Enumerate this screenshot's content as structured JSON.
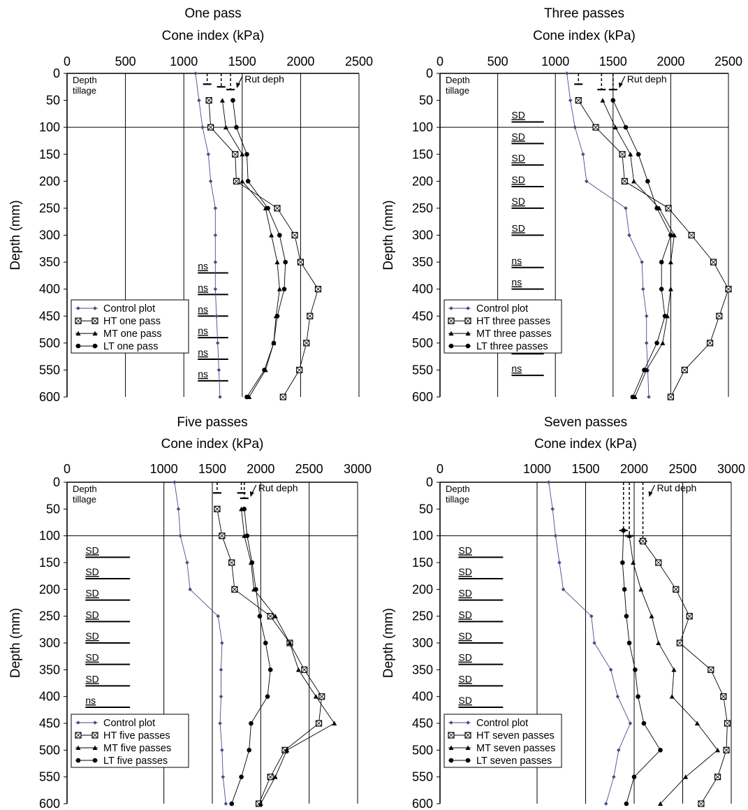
{
  "chart_data": [
    {
      "type": "line",
      "title": "One pass",
      "xlabel": "Cone index (kPa)",
      "ylabel": "Depth (mm)",
      "xlim": [
        0,
        2500
      ],
      "ylim": [
        0,
        600
      ],
      "xticks": [
        0,
        500,
        1000,
        1500,
        2000,
        2500
      ],
      "yticks": [
        0,
        50,
        100,
        150,
        200,
        250,
        300,
        350,
        400,
        450,
        500,
        550,
        600
      ],
      "y_reversed": true,
      "grid": "vertical gridlines at each x tick; horizontal line at depth 100",
      "legend_position": "bottom-left",
      "depth_tillage_label": "Depth tillage",
      "rut_depth_label": "Rut deph",
      "rut_marks": [
        {
          "series": "HT one pass",
          "x": 1200,
          "depth": 20
        },
        {
          "series": "MT one pass",
          "x": 1320,
          "depth": 25
        },
        {
          "series": "LT one pass",
          "x": 1400,
          "depth": 30
        }
      ],
      "annotations": [
        {
          "text": "ns",
          "depth": 370
        },
        {
          "text": "ns",
          "depth": 410
        },
        {
          "text": "ns",
          "depth": 450
        },
        {
          "text": "ns",
          "depth": 490
        },
        {
          "text": "ns",
          "depth": 530
        },
        {
          "text": "ns",
          "depth": 570
        }
      ],
      "annotation_x": [
        1120,
        1380
      ],
      "series": [
        {
          "name": "Control plot",
          "marker": "diamond",
          "depth": [
            0,
            50,
            100,
            150,
            200,
            250,
            300,
            350,
            400,
            450,
            500,
            550,
            600
          ],
          "values": [
            1100,
            1130,
            1160,
            1210,
            1230,
            1270,
            1270,
            1270,
            1270,
            1280,
            1290,
            1300,
            1310
          ]
        },
        {
          "name": "HT one pass",
          "marker": "square",
          "depth": [
            50,
            100,
            150,
            200,
            250,
            300,
            350,
            400,
            450,
            500,
            550,
            600
          ],
          "values": [
            1215,
            1230,
            1440,
            1450,
            1800,
            1950,
            2000,
            2150,
            2080,
            2050,
            1990,
            1850
          ]
        },
        {
          "name": "MT one pass",
          "marker": "triangle",
          "depth": [
            50,
            100,
            150,
            200,
            250,
            300,
            350,
            400,
            450,
            500,
            550,
            600
          ],
          "values": [
            1330,
            1360,
            1500,
            1500,
            1700,
            1750,
            1800,
            1820,
            1790,
            1770,
            1700,
            1560
          ]
        },
        {
          "name": "LT one pass",
          "marker": "circle",
          "depth": [
            50,
            100,
            150,
            200,
            250,
            300,
            350,
            400,
            450,
            500,
            550,
            600
          ],
          "values": [
            1420,
            1450,
            1540,
            1550,
            1720,
            1820,
            1870,
            1860,
            1800,
            1770,
            1690,
            1540
          ]
        }
      ],
      "legend": [
        "Control plot",
        "HT one pass",
        "MT one pass",
        "LT one pass"
      ]
    },
    {
      "type": "line",
      "title": "Three passes",
      "xlabel": "Cone index (kPa)",
      "ylabel": "Depth (mm)",
      "xlim": [
        0,
        2500
      ],
      "ylim": [
        0,
        600
      ],
      "xticks": [
        0,
        500,
        1000,
        1500,
        2000,
        2500
      ],
      "yticks": [
        0,
        50,
        100,
        150,
        200,
        250,
        300,
        350,
        400,
        450,
        500,
        550,
        600
      ],
      "y_reversed": true,
      "grid": "vertical gridlines at each x tick; horizontal line at depth 100",
      "legend_position": "bottom-left",
      "depth_tillage_label": "Depth tillage",
      "rut_depth_label": "Rut deph",
      "rut_marks": [
        {
          "series": "HT three passes",
          "x": 1200,
          "depth": 20
        },
        {
          "series": "MT three passes",
          "x": 1400,
          "depth": 30
        },
        {
          "series": "LT three passes",
          "x": 1500,
          "depth": 30
        }
      ],
      "annotations": [
        {
          "text": "SD",
          "depth": 90
        },
        {
          "text": "SD",
          "depth": 130
        },
        {
          "text": "SD",
          "depth": 170
        },
        {
          "text": "SD",
          "depth": 210
        },
        {
          "text": "SD",
          "depth": 250
        },
        {
          "text": "SD",
          "depth": 300
        },
        {
          "text": "ns",
          "depth": 360
        },
        {
          "text": "ns",
          "depth": 400
        },
        {
          "text": "ns",
          "depth": 440
        },
        {
          "text": "ns",
          "depth": 480
        },
        {
          "text": "ns",
          "depth": 520
        },
        {
          "text": "ns",
          "depth": 560
        }
      ],
      "annotation_x": [
        620,
        900
      ],
      "series": [
        {
          "name": "Control plot",
          "marker": "diamond",
          "depth": [
            0,
            50,
            100,
            150,
            200,
            250,
            300,
            350,
            400,
            450,
            500,
            550,
            600
          ],
          "values": [
            1100,
            1130,
            1170,
            1240,
            1270,
            1610,
            1640,
            1750,
            1760,
            1790,
            1790,
            1800,
            1810
          ]
        },
        {
          "name": "HT three passes",
          "marker": "square",
          "depth": [
            50,
            100,
            150,
            200,
            250,
            300,
            350,
            400,
            450,
            500,
            550,
            600
          ],
          "values": [
            1200,
            1350,
            1580,
            1600,
            1980,
            2180,
            2370,
            2500,
            2420,
            2340,
            2120,
            2000
          ]
        },
        {
          "name": "MT three passes",
          "marker": "triangle",
          "depth": [
            50,
            100,
            150,
            200,
            250,
            300,
            350,
            400,
            450,
            500,
            550,
            600
          ],
          "values": [
            1410,
            1520,
            1650,
            1680,
            1900,
            2030,
            2000,
            2000,
            1970,
            1930,
            1790,
            1690
          ]
        },
        {
          "name": "LT three passes",
          "marker": "circle",
          "depth": [
            50,
            100,
            150,
            200,
            250,
            300,
            350,
            400,
            450,
            500,
            550,
            600
          ],
          "values": [
            1500,
            1610,
            1720,
            1800,
            1880,
            2000,
            1920,
            1920,
            1950,
            1880,
            1770,
            1670
          ]
        }
      ],
      "legend": [
        "Control plot",
        "HT three passes",
        "MT three passes",
        "LT three passes"
      ]
    },
    {
      "type": "line",
      "title": "Five passes",
      "xlabel": "Cone index (kPa)",
      "ylabel": "Depth (mm)",
      "xlim": [
        0,
        3000
      ],
      "ylim": [
        0,
        600
      ],
      "xticks": [
        0,
        1000,
        1500,
        2000,
        2500,
        3000
      ],
      "yticks": [
        0,
        50,
        100,
        150,
        200,
        250,
        300,
        350,
        400,
        450,
        500,
        550,
        600
      ],
      "y_reversed": true,
      "grid": "vertical gridlines at each x tick; horizontal line at depth 100",
      "legend_position": "bottom-left",
      "depth_tillage_label": "Depth tillage",
      "rut_depth_label": "Rut deph",
      "rut_marks": [
        {
          "series": "HT five passes",
          "x": 1550,
          "depth": 20
        },
        {
          "series": "MT five passes",
          "x": 1800,
          "depth": 20
        },
        {
          "series": "LT five passes",
          "x": 1830,
          "depth": 30
        }
      ],
      "annotations": [
        {
          "text": "SD",
          "depth": 140
        },
        {
          "text": "SD",
          "depth": 180
        },
        {
          "text": "SD",
          "depth": 220
        },
        {
          "text": "SD",
          "depth": 260
        },
        {
          "text": "SD",
          "depth": 300
        },
        {
          "text": "SD",
          "depth": 340
        },
        {
          "text": "SD",
          "depth": 380
        },
        {
          "text": "ns",
          "depth": 420
        },
        {
          "text": "ns",
          "depth": 460
        },
        {
          "text": "ns",
          "depth": 500
        }
      ],
      "annotation_x": [
        190,
        650
      ],
      "series": [
        {
          "name": "Control plot",
          "marker": "diamond",
          "depth": [
            0,
            50,
            100,
            150,
            200,
            250,
            300,
            350,
            400,
            450,
            500,
            550,
            600
          ],
          "values": [
            1110,
            1150,
            1170,
            1240,
            1270,
            1560,
            1600,
            1590,
            1590,
            1580,
            1600,
            1610,
            1640
          ]
        },
        {
          "name": "HT five passes",
          "marker": "square",
          "depth": [
            50,
            100,
            150,
            200,
            250,
            300,
            350,
            400,
            450,
            500,
            550,
            600
          ],
          "values": [
            1550,
            1600,
            1700,
            1730,
            2100,
            2300,
            2450,
            2630,
            2600,
            2250,
            2100,
            1980
          ]
        },
        {
          "name": "MT five passes",
          "marker": "triangle",
          "depth": [
            50,
            100,
            150,
            200,
            250,
            300,
            350,
            400,
            450,
            500,
            550,
            600
          ],
          "values": [
            1800,
            1830,
            1900,
            1930,
            2150,
            2300,
            2390,
            2570,
            2760,
            2270,
            2150,
            2000
          ]
        },
        {
          "name": "LT five passes",
          "marker": "circle",
          "depth": [
            50,
            100,
            150,
            200,
            250,
            300,
            350,
            400,
            450,
            500,
            550,
            600
          ],
          "values": [
            1830,
            1860,
            1910,
            1950,
            1990,
            2050,
            2100,
            2070,
            1900,
            1880,
            1800,
            1700
          ]
        }
      ],
      "legend": [
        "Control plot",
        "HT five passes",
        "MT five passes",
        "LT five passes"
      ]
    },
    {
      "type": "line",
      "title": "Seven passes",
      "xlabel": "Cone index (kPa)",
      "ylabel": "Depth (mm)",
      "xlim": [
        0,
        3000
      ],
      "ylim": [
        0,
        600
      ],
      "xticks": [
        0,
        1000,
        1500,
        2000,
        2500,
        3000
      ],
      "yticks": [
        0,
        50,
        100,
        150,
        200,
        250,
        300,
        350,
        400,
        450,
        500,
        550,
        600
      ],
      "y_reversed": true,
      "grid": "vertical gridlines at each x tick; horizontal line at depth 100",
      "legend_position": "bottom-left",
      "depth_tillage_label": "Depth tillage",
      "rut_depth_label": "Rut deph",
      "rut_marks": [
        {
          "series": "HT seven passes",
          "x": 2090,
          "depth": 110
        },
        {
          "series": "MT seven passes",
          "x": 1950,
          "depth": 100
        },
        {
          "series": "LT seven passes",
          "x": 1890,
          "depth": 90
        }
      ],
      "annotations": [
        {
          "text": "SD",
          "depth": 140
        },
        {
          "text": "SD",
          "depth": 180
        },
        {
          "text": "SD",
          "depth": 220
        },
        {
          "text": "SD",
          "depth": 260
        },
        {
          "text": "SD",
          "depth": 300
        },
        {
          "text": "SD",
          "depth": 340
        },
        {
          "text": "SD",
          "depth": 380
        },
        {
          "text": "SD",
          "depth": 420
        },
        {
          "text": "SD",
          "depth": 460
        }
      ],
      "annotation_x": [
        190,
        650
      ],
      "series": [
        {
          "name": "Control plot",
          "marker": "diamond",
          "depth": [
            0,
            50,
            100,
            150,
            200,
            250,
            300,
            350,
            400,
            450,
            500,
            550,
            600
          ],
          "values": [
            1120,
            1160,
            1190,
            1230,
            1270,
            1560,
            1590,
            1760,
            1830,
            1960,
            1840,
            1790,
            1710
          ]
        },
        {
          "name": "HT seven passes",
          "marker": "square",
          "depth": [
            110,
            150,
            200,
            250,
            300,
            350,
            400,
            450,
            500,
            550,
            600
          ],
          "values": [
            2090,
            2250,
            2430,
            2570,
            2470,
            2790,
            2920,
            2960,
            2950,
            2860,
            2690
          ]
        },
        {
          "name": "MT seven passes",
          "marker": "triangle",
          "depth": [
            100,
            150,
            200,
            250,
            300,
            350,
            400,
            450,
            500,
            550,
            600
          ],
          "values": [
            1950,
            1990,
            2070,
            2180,
            2250,
            2410,
            2390,
            2650,
            2860,
            2530,
            2270
          ]
        },
        {
          "name": "LT seven passes",
          "marker": "circle",
          "depth": [
            90,
            150,
            200,
            250,
            300,
            350,
            400,
            450,
            500,
            550,
            600
          ],
          "values": [
            1890,
            1880,
            1900,
            1920,
            1950,
            2010,
            2040,
            2100,
            2270,
            2000,
            1920
          ]
        }
      ],
      "legend": [
        "Control plot",
        "HT seven passes",
        "MT seven passes",
        "LT seven passes"
      ]
    }
  ],
  "colors": {
    "control": "#4a4a8a",
    "series": "#000000",
    "axis": "#000000",
    "background": "#ffffff"
  }
}
